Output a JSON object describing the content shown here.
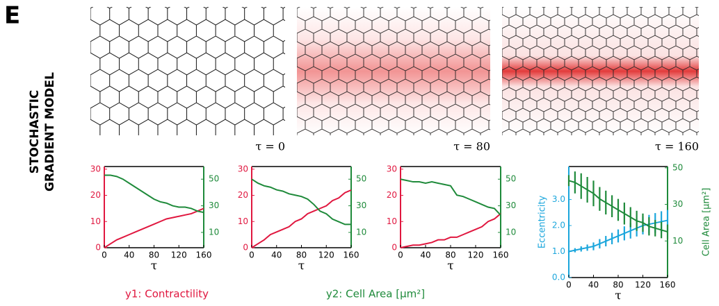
{
  "panel_label": "E",
  "side_title": [
    "STOCHASTIC",
    "GRADIENT MODEL"
  ],
  "snapshots": [
    "τ = 0",
    "τ = 80",
    "τ = 160"
  ],
  "chart_data": [
    {
      "type": "line",
      "x_label": "τ",
      "x": [
        0,
        10,
        20,
        30,
        40,
        50,
        60,
        70,
        80,
        90,
        100,
        110,
        120,
        130,
        140,
        150,
        160
      ],
      "xlim": [
        0,
        160
      ],
      "xticks": [
        0,
        40,
        80,
        120,
        160
      ],
      "ylim": [
        0,
        31
      ],
      "yticks": [
        0,
        10,
        20,
        30
      ],
      "y2lim": [
        -1.5,
        59.5
      ],
      "y2ticks": [
        10,
        30,
        50
      ],
      "series": [
        {
          "name": "y1: Contractility",
          "color": "#e0173f",
          "values": [
            0,
            1.5,
            3,
            4,
            5,
            6,
            7,
            8,
            9,
            10,
            11,
            11.5,
            12,
            12.5,
            13,
            14,
            15
          ]
        },
        {
          "name": "y2: Cell Area [μm²]",
          "color": "#1e8a3a",
          "axis": "y2",
          "values": [
            53,
            53,
            52,
            50,
            47,
            44,
            41,
            38,
            35,
            33,
            32,
            30,
            29,
            29,
            28,
            26,
            25
          ]
        }
      ]
    },
    {
      "type": "line",
      "x_label": "τ",
      "x": [
        0,
        10,
        20,
        30,
        40,
        50,
        60,
        70,
        80,
        90,
        100,
        110,
        120,
        130,
        140,
        150,
        160
      ],
      "xlim": [
        0,
        160
      ],
      "xticks": [
        0,
        40,
        80,
        120,
        160
      ],
      "ylim": [
        0,
        31
      ],
      "yticks": [
        0,
        10,
        20,
        30
      ],
      "y2lim": [
        -1.5,
        59.5
      ],
      "y2ticks": [
        10,
        30,
        50
      ],
      "series": [
        {
          "color": "#e0173f",
          "values": [
            0,
            1.5,
            3,
            5,
            6,
            7,
            8,
            10,
            11,
            13,
            14,
            15,
            16,
            18,
            19,
            21,
            22
          ]
        },
        {
          "color": "#1e8a3a",
          "axis": "y2",
          "values": [
            50,
            47,
            45,
            44,
            42,
            41,
            39,
            38,
            37,
            35,
            31,
            26,
            24,
            20,
            18,
            16,
            16
          ]
        }
      ]
    },
    {
      "type": "line",
      "x_label": "τ",
      "x": [
        0,
        10,
        20,
        30,
        40,
        50,
        60,
        70,
        80,
        90,
        100,
        110,
        120,
        130,
        140,
        150,
        160
      ],
      "xlim": [
        0,
        160
      ],
      "xticks": [
        0,
        40,
        80,
        120,
        160
      ],
      "ylim": [
        0,
        31
      ],
      "yticks": [
        0,
        10,
        20,
        30
      ],
      "y2lim": [
        -1.5,
        59.5
      ],
      "y2ticks": [
        10,
        30,
        50
      ],
      "series": [
        {
          "color": "#e0173f",
          "values": [
            0,
            0.5,
            1,
            1,
            1.5,
            2,
            3,
            3,
            4,
            4,
            5,
            6,
            7,
            8,
            10,
            11,
            13
          ]
        },
        {
          "color": "#1e8a3a",
          "axis": "y2",
          "values": [
            50,
            49,
            48,
            48,
            47,
            48,
            47,
            46,
            45,
            38,
            37,
            35,
            33,
            31,
            29,
            28,
            23
          ]
        }
      ]
    },
    {
      "type": "line",
      "x_label": "τ",
      "y_label": "Eccentricity",
      "y2_label": "Cell Area [μm²]",
      "x": [
        0,
        10,
        20,
        30,
        40,
        50,
        60,
        70,
        80,
        90,
        100,
        110,
        120,
        130,
        140,
        150,
        160
      ],
      "xlim": [
        0,
        160
      ],
      "xticks": [
        0,
        40,
        80,
        120,
        160
      ],
      "ylim": [
        0,
        4.27
      ],
      "yticks": [
        {
          "value": 0,
          "label": "0.0"
        },
        {
          "value": 1,
          "label": "1.0"
        },
        {
          "value": 2,
          "label": "2.0"
        },
        {
          "value": 3,
          "label": "3.0"
        }
      ],
      "y2lim": [
        -10,
        50.7
      ],
      "y2ticks": [
        10,
        30,
        50
      ],
      "series": [
        {
          "color": "#1ba6dc",
          "values": [
            1.0,
            1.05,
            1.1,
            1.15,
            1.2,
            1.3,
            1.4,
            1.5,
            1.6,
            1.7,
            1.8,
            1.9,
            2.0,
            2.05,
            2.1,
            2.15,
            2.2
          ],
          "errors": [
            0.05,
            0.08,
            0.1,
            0.12,
            0.15,
            0.18,
            0.2,
            0.22,
            0.25,
            0.27,
            0.3,
            0.32,
            0.34,
            0.36,
            0.38,
            0.4,
            0.4
          ]
        },
        {
          "color": "#1e8a3a",
          "axis": "y2",
          "values": [
            43,
            42,
            40,
            38,
            36,
            33,
            31,
            29,
            27,
            25,
            23,
            21,
            20,
            18,
            17,
            16,
            15
          ],
          "errors": [
            3,
            6,
            7,
            7,
            7,
            6.5,
            6.5,
            6,
            6,
            6,
            5.5,
            5.5,
            5,
            5,
            4.5,
            4.5,
            4
          ]
        }
      ]
    }
  ]
}
